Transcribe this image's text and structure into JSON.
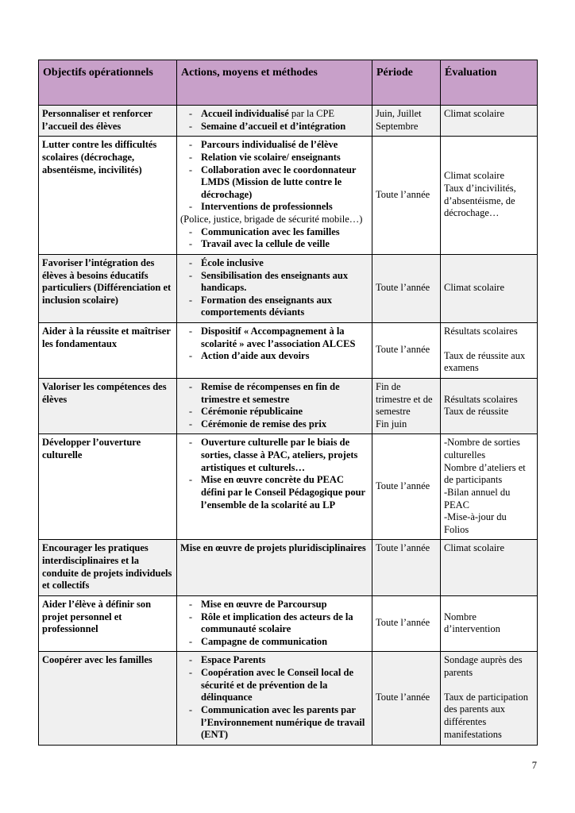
{
  "colors": {
    "header_bg": "#c8a0c9",
    "row_alt_bg": "#f0f0f0",
    "border": "#000000"
  },
  "page": {
    "number": "7"
  },
  "table": {
    "headers": [
      "Objectifs opérationnels",
      "Actions, moyens et méthodes",
      "Période",
      "Évaluation"
    ],
    "rows": [
      {
        "objective": "Personnaliser et renforcer l’accueil des élèves",
        "actions": [
          {
            "marker": "-",
            "bold": "Accueil individualisé",
            "regular": " par la CPE"
          },
          {
            "marker": "-",
            "bold": "Semaine d’accueil et d’intégration",
            "regular": ""
          }
        ],
        "period": [
          "Juin, Juillet Septembre"
        ],
        "period_align": "top",
        "evaluation": [
          "Climat scolaire"
        ],
        "eval_align": "top"
      },
      {
        "objective": "Lutter contre les difficultés scolaires (décrochage, absentéisme, incivilités)",
        "actions": [
          {
            "marker": "-",
            "bold": "Parcours individualisé de l’élève",
            "regular": ""
          },
          {
            "marker": "-",
            "bold": "Relation vie scolaire/ enseignants",
            "regular": ""
          },
          {
            "marker": "-",
            "bold": "Collaboration avec le coordonnateur LMDS (Mission de lutte contre le décrochage)",
            "regular": ""
          },
          {
            "marker": "-",
            "bold": "Interventions de professionnels",
            "regular": ""
          },
          {
            "marker": "",
            "bold": "",
            "regular": "(Police, justice, brigade de sécurité mobile…)"
          },
          {
            "marker": "-",
            "bold": "Communication avec les familles",
            "regular": ""
          },
          {
            "marker": "-",
            "bold": "Travail avec la cellule de veille",
            "regular": ""
          }
        ],
        "period": [
          "Toute l’année"
        ],
        "period_align": "middle",
        "evaluation": [
          "Climat scolaire",
          "Taux d’incivilités, d’absentéisme, de décrochage…"
        ],
        "eval_align": "middle"
      },
      {
        "objective": "Favoriser l’intégration des élèves à besoins éducatifs particuliers (Différenciation et inclusion scolaire)",
        "actions": [
          {
            "marker": "-",
            "bold": "École inclusive",
            "regular": ""
          },
          {
            "marker": "-",
            "bold": "Sensibilisation des enseignants aux handicaps.",
            "regular": ""
          },
          {
            "marker": "-",
            "bold": "Formation des enseignants aux comportements déviants",
            "regular": ""
          }
        ],
        "period": [
          "Toute l’année"
        ],
        "period_align": "middle",
        "evaluation": [
          "Climat scolaire"
        ],
        "eval_align": "middle"
      },
      {
        "objective": "Aider à la réussite et maîtriser les fondamentaux",
        "actions": [
          {
            "marker": "-",
            "bold": "Dispositif « Accompagnement à la scolarité » avec l’association ALCES",
            "regular": ""
          },
          {
            "marker": "-",
            "bold": "Action d’aide aux devoirs",
            "regular": ""
          }
        ],
        "period": [
          "Toute l’année"
        ],
        "period_align": "middle",
        "evaluation": [
          "Résultats scolaires",
          "",
          "Taux de réussite aux examens"
        ],
        "eval_align": "top"
      },
      {
        "objective": "Valoriser les compétences des élèves",
        "actions": [
          {
            "marker": "-",
            "bold": "Remise de récompenses en fin de trimestre et semestre",
            "regular": ""
          },
          {
            "marker": "-",
            "bold": "Cérémonie républicaine",
            "regular": ""
          },
          {
            "marker": "-",
            "bold": "Cérémonie de remise des prix",
            "regular": ""
          }
        ],
        "period": [
          "Fin de trimestre et de semestre",
          "Fin juin"
        ],
        "period_align": "top",
        "evaluation": [
          "Résultats scolaires",
          "Taux de réussite"
        ],
        "eval_align": "middle"
      },
      {
        "objective": "Développer l’ouverture culturelle",
        "actions": [
          {
            "marker": "-",
            "bold": "Ouverture culturelle par le biais de sorties, classe à PAC, ateliers, projets artistiques et culturels…",
            "regular": ""
          },
          {
            "marker": "-",
            "bold": "Mise en œuvre concrète du PEAC défini par le Conseil Pédagogique pour l’ensemble de la scolarité au LP",
            "regular": ""
          }
        ],
        "period": [
          "Toute l’année"
        ],
        "period_align": "middle",
        "evaluation": [
          "-Nombre de sorties culturelles",
          "Nombre d’ateliers et de participants",
          "-Bilan annuel du PEAC",
          "-Mise-à-jour du Folios"
        ],
        "eval_align": "top"
      },
      {
        "objective": "Encourager les pratiques interdisciplinaires et la conduite de projets individuels et collectifs",
        "actions": [
          {
            "marker": "",
            "bold": "Mise en œuvre de projets pluridisciplinaires",
            "regular": ""
          }
        ],
        "period": [
          "Toute l’année"
        ],
        "period_align": "top",
        "evaluation": [
          "Climat scolaire"
        ],
        "eval_align": "top"
      },
      {
        "objective": "Aider l’élève à définir son projet personnel et professionnel",
        "actions": [
          {
            "marker": "-",
            "bold": "Mise en œuvre de Parcoursup",
            "regular": ""
          },
          {
            "marker": "-",
            "bold": "Rôle et implication des acteurs de la communauté scolaire",
            "regular": ""
          },
          {
            "marker": "-",
            "bold": "Campagne de communication",
            "regular": ""
          }
        ],
        "period": [
          "Toute l’année"
        ],
        "period_align": "middle",
        "evaluation": [
          "Nombre d’intervention"
        ],
        "eval_align": "middle"
      },
      {
        "objective": "Coopérer avec les familles",
        "actions": [
          {
            "marker": "-",
            "bold": "Espace Parents",
            "regular": ""
          },
          {
            "marker": "-",
            "bold": "Coopération avec le Conseil local de sécurité et de prévention de la délinquance",
            "regular": ""
          },
          {
            "marker": "-",
            "bold": "Communication avec les parents par l’Environnement numérique de travail (ENT)",
            "regular": ""
          }
        ],
        "period": [
          "Toute l’année"
        ],
        "period_align": "middle",
        "evaluation": [
          "Sondage auprès des parents",
          "",
          "Taux de participation des parents aux différentes manifestations"
        ],
        "eval_align": "top"
      }
    ]
  }
}
